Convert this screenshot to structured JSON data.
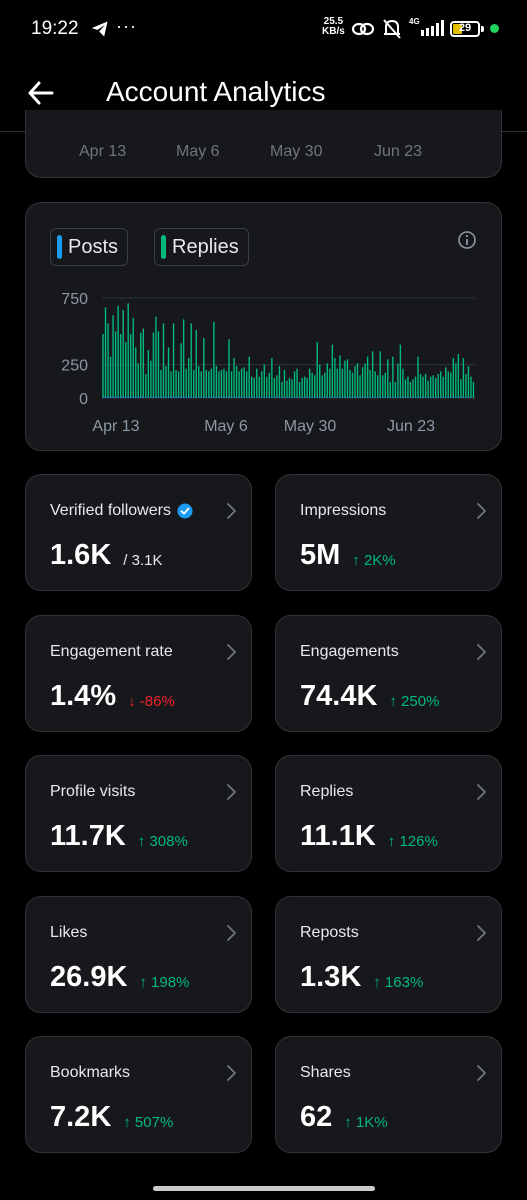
{
  "status_bar": {
    "time": "19:22",
    "dots": "···",
    "speed_value": "25.5",
    "speed_unit": "KB/s",
    "network": "4G",
    "battery": "29"
  },
  "header": {
    "title": "Account Analytics"
  },
  "top_card": {
    "labels": [
      "Apr 13",
      "May 6",
      "May 30",
      "Jun 23"
    ]
  },
  "chart": {
    "legend": [
      {
        "label": "Posts",
        "color": "#1d9bf0"
      },
      {
        "label": "Replies",
        "color": "#00ba7c"
      }
    ]
  },
  "chart_data": {
    "type": "bar",
    "x_ticks": [
      "Apr 13",
      "May 6",
      "May 30",
      "Jun 23"
    ],
    "y_ticks": [
      "750",
      "250",
      "0"
    ],
    "ylim": [
      0,
      750
    ],
    "grid": true,
    "series": [
      {
        "name": "Replies",
        "color": "#00ba7c",
        "values": [
          480,
          680,
          560,
          310,
          620,
          500,
          690,
          480,
          660,
          420,
          710,
          480,
          600,
          380,
          260,
          490,
          520,
          180,
          360,
          280,
          490,
          610,
          500,
          210,
          560,
          240,
          380,
          200,
          560,
          210,
          200,
          410,
          590,
          220,
          300,
          560,
          210,
          510,
          240,
          200,
          450,
          210,
          200,
          220,
          570,
          240,
          200,
          210,
          220,
          200,
          440,
          200,
          300,
          240,
          200,
          220,
          230,
          200,
          310,
          160,
          150,
          220,
          160,
          200,
          250,
          160,
          190,
          300,
          150,
          170,
          240,
          120,
          210,
          130,
          150,
          140,
          200,
          220,
          120,
          150,
          160,
          150,
          220,
          190,
          170,
          420,
          250,
          170,
          190,
          260,
          220,
          400,
          300,
          220,
          320,
          220,
          280,
          290,
          210,
          190,
          240,
          260,
          170,
          230,
          260,
          310,
          210,
          350,
          200,
          170,
          350,
          170,
          190,
          290,
          120,
          310,
          120,
          260,
          400,
          220,
          140,
          160,
          120,
          140,
          160,
          310,
          180,
          160,
          180,
          130,
          160,
          170,
          150,
          180,
          200,
          160,
          230,
          200,
          190,
          300,
          260,
          330,
          140,
          300,
          180,
          240,
          160,
          120
        ]
      },
      {
        "name": "Posts",
        "color": "#1d9bf0",
        "values": [
          10,
          15,
          8,
          12,
          10,
          14,
          9,
          11,
          12,
          8,
          15,
          10,
          9,
          12,
          8,
          10,
          11,
          7,
          9,
          8,
          10,
          12,
          9,
          7,
          11,
          8,
          9,
          7,
          10,
          8,
          7,
          9,
          11,
          7,
          8,
          10,
          7,
          9,
          8,
          7,
          9,
          7,
          7,
          8,
          10,
          8,
          7,
          7,
          8,
          7,
          9,
          7,
          8,
          8,
          7,
          7,
          8,
          7,
          8,
          6,
          6,
          7,
          6,
          7,
          8,
          6,
          7,
          8,
          6,
          6,
          7,
          5,
          7,
          5,
          6,
          6,
          7,
          7,
          5,
          6,
          6,
          6,
          7,
          7,
          6,
          9,
          8,
          6,
          7,
          8,
          7,
          9,
          8,
          7,
          8,
          7,
          8,
          8,
          7,
          7,
          7,
          8,
          6,
          7,
          8,
          8,
          7,
          9,
          7,
          6,
          9,
          6,
          7,
          8,
          5,
          8,
          5,
          8,
          9,
          7,
          5,
          6,
          5,
          5,
          6,
          8,
          6,
          6,
          6,
          5,
          6,
          6,
          6,
          6,
          7,
          6,
          7,
          7,
          7,
          8,
          8,
          9,
          6,
          8,
          6,
          7,
          6,
          5
        ]
      }
    ]
  },
  "metrics": [
    {
      "label": "Verified followers",
      "value": "1.6K",
      "delta": "/ 3.1K",
      "trend": "none",
      "verified_icon": true
    },
    {
      "label": "Impressions",
      "value": "5M",
      "delta": "↑ 2K%",
      "trend": "up"
    },
    {
      "label": "Engagement rate",
      "value": "1.4%",
      "delta": "↓ -86%",
      "trend": "down"
    },
    {
      "label": "Engagements",
      "value": "74.4K",
      "delta": "↑ 250%",
      "trend": "up"
    },
    {
      "label": "Profile visits",
      "value": "11.7K",
      "delta": "↑ 308%",
      "trend": "up"
    },
    {
      "label": "Replies",
      "value": "11.1K",
      "delta": "↑ 126%",
      "trend": "up"
    },
    {
      "label": "Likes",
      "value": "26.9K",
      "delta": "↑ 198%",
      "trend": "up"
    },
    {
      "label": "Reposts",
      "value": "1.3K",
      "delta": "↑ 163%",
      "trend": "up"
    },
    {
      "label": "Bookmarks",
      "value": "7.2K",
      "delta": "↑ 507%",
      "trend": "up"
    },
    {
      "label": "Shares",
      "value": "62",
      "delta": "↑ 1K%",
      "trend": "up"
    }
  ]
}
